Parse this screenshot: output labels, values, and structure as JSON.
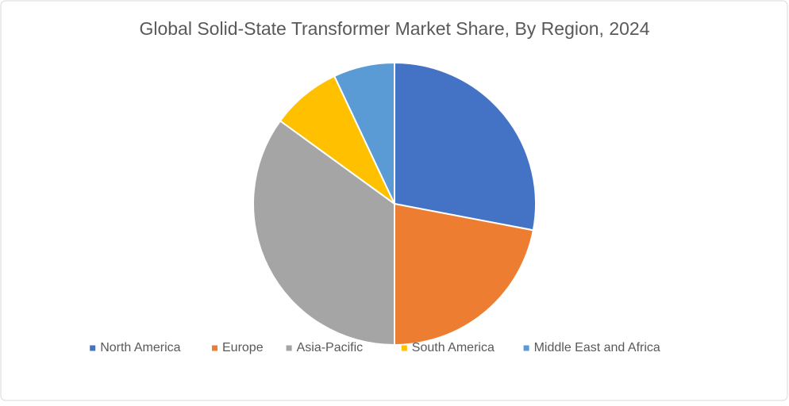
{
  "chart_data": {
    "type": "pie",
    "title": "Global Solid-State Transformer Market Share, By Region, 2024",
    "categories": [
      "North America",
      "Europe",
      "Asia-Pacific",
      "South America",
      "Middle East and Africa"
    ],
    "values": [
      28,
      22,
      35,
      8,
      7
    ],
    "colors": [
      "#4472c4",
      "#ed7d31",
      "#a5a5a5",
      "#ffc000",
      "#5b9bd5"
    ],
    "legend": "bottom"
  }
}
